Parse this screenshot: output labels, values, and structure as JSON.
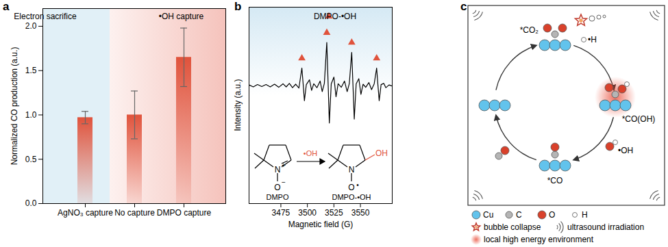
{
  "chart_data": [
    {
      "type": "bar",
      "panel": "a",
      "categories": [
        "AgNO₃ capture",
        "No capture",
        "DMPO capture"
      ],
      "values": [
        0.97,
        1.0,
        1.65
      ],
      "errors": [
        0.07,
        0.27,
        0.33
      ],
      "color": "#e0533c",
      "ylabel": "Normalized CO production (a.u.)",
      "ylim": [
        0,
        2.2
      ],
      "yticks": [
        {
          "value": 0,
          "label": "0.0"
        },
        0.5,
        {
          "value": 1,
          "label": "1.0"
        },
        1.5,
        {
          "value": 2,
          "label": "2.0"
        }
      ],
      "annotations": [
        "Electron sacrifice",
        "•OH capture"
      ]
    },
    {
      "type": "line",
      "panel": "b",
      "x": [
        3445,
        3449,
        3453,
        3457,
        3461,
        3465,
        3469,
        3473,
        3477,
        3480,
        3483,
        3486,
        3489,
        3492,
        3494.8,
        3496,
        3497.2,
        3499,
        3502,
        3504,
        3506,
        3509,
        3512,
        3514,
        3516,
        3518.3,
        3519.5,
        3520.7,
        3522.5,
        3525,
        3527,
        3529,
        3532,
        3535,
        3537.5,
        3539.5,
        3541.8,
        3543,
        3544.2,
        3546,
        3548.5,
        3550.5,
        3552.5,
        3555,
        3558,
        3560.5,
        3563,
        3565.3,
        3566.5,
        3567.7,
        3569.5,
        3572,
        3574,
        3577,
        3580
      ],
      "values": [
        0.02,
        -0.03,
        0.03,
        -0.02,
        0.03,
        -0.03,
        0.04,
        -0.04,
        0.05,
        -0.03,
        0.06,
        -0.05,
        0.04,
        -0.06,
        0.45,
        0.05,
        -0.38,
        0.03,
        0.15,
        -0.12,
        0.05,
        -0.05,
        0.12,
        -0.15,
        0.06,
        1.1,
        0.1,
        -0.95,
        0.05,
        0.22,
        -0.28,
        0.05,
        -0.04,
        0.12,
        -0.15,
        0.05,
        0.85,
        0,
        -0.85,
        0.05,
        0.18,
        -0.22,
        0.04,
        -0.04,
        0.08,
        -0.1,
        0.05,
        0.45,
        0.02,
        -0.38,
        0.03,
        0.06,
        -0.05,
        0.02,
        -0.01
      ],
      "color": "#000000",
      "xlabel": "Magnetic field (G)",
      "ylabel": "Intensity (a.u.)",
      "xlim": [
        3445,
        3580
      ],
      "xticks": [
        3475,
        3500,
        3525,
        3550
      ],
      "ylim": [
        -3,
        2
      ],
      "tick_labels": "x",
      "legend": "top-right",
      "markers": {
        "name": "DMPO-•OH",
        "color": "#e0533c",
        "marker": "triangle",
        "x": [
          3494.8,
          3518.3,
          3541.8,
          3565.3
        ],
        "y": [
          0.7,
          1.35,
          1.1,
          0.7
        ]
      },
      "scheme": {
        "arrow_label": "•OH",
        "reactant": "DMPO",
        "product": "DMPO-•OH",
        "atoms": {
          "n": "N",
          "o": "O",
          "oh": "OH",
          "plus": "+",
          "minus": "−",
          "radical": "•"
        }
      }
    }
  ],
  "diagram": {
    "panel": "c",
    "species": {
      "co2": "*CO₂",
      "h": "•H",
      "coh": "*CO(OH)",
      "oh": "•OH",
      "co": "*CO"
    },
    "legend": {
      "atoms": [
        "Cu",
        "C",
        "O",
        "H"
      ],
      "items": [
        "bubble collapse",
        "ultrasound irradiation",
        "local high energy environment"
      ]
    }
  }
}
